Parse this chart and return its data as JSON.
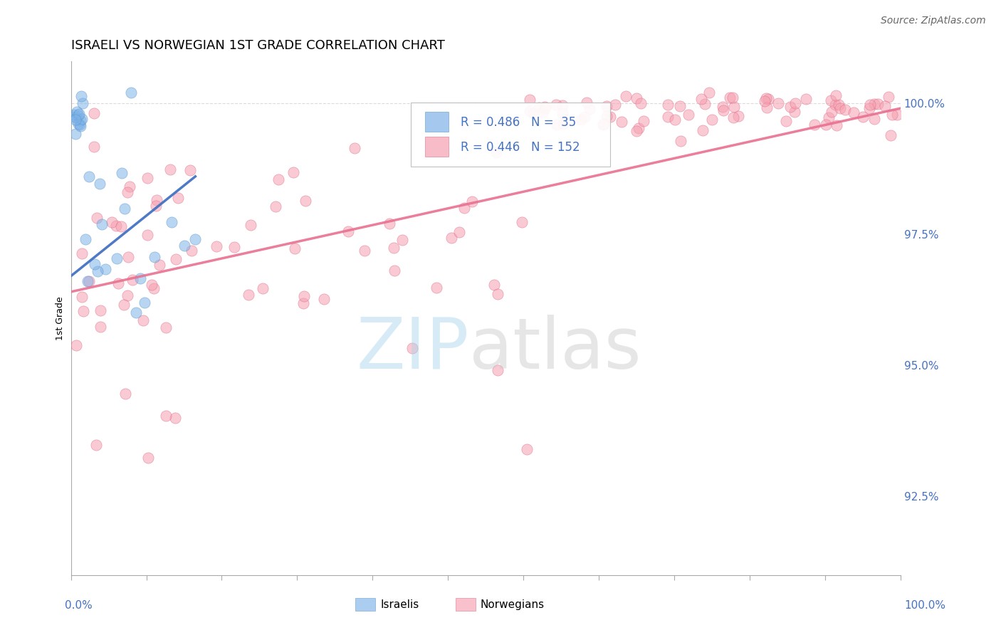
{
  "title": "ISRAELI VS NORWEGIAN 1ST GRADE CORRELATION CHART",
  "source": "Source: ZipAtlas.com",
  "ylabel": "1st Grade",
  "y_tick_labels": [
    "92.5%",
    "95.0%",
    "97.5%",
    "100.0%"
  ],
  "y_tick_values": [
    0.925,
    0.95,
    0.975,
    1.0
  ],
  "x_min": 0.0,
  "x_max": 1.0,
  "y_min": 0.91,
  "y_max": 1.008,
  "israelis_color": "#7fb3e8",
  "israelis_edge_color": "#5090c8",
  "norwegians_color": "#f5a0b0",
  "norwegians_edge_color": "#e06080",
  "trendline_israeli_color": "#4472c4",
  "trendline_norwegian_color": "#e87090",
  "background_color": "#ffffff",
  "grid_color": "#cccccc",
  "title_fontsize": 13,
  "axis_label_fontsize": 9,
  "tick_label_fontsize": 11,
  "source_fontsize": 10,
  "legend_R_israeli": "R = 0.486",
  "legend_N_israeli": "N =  35",
  "legend_R_norwegian": "R = 0.446",
  "legend_N_norwegian": "N = 152",
  "marker_size": 120
}
